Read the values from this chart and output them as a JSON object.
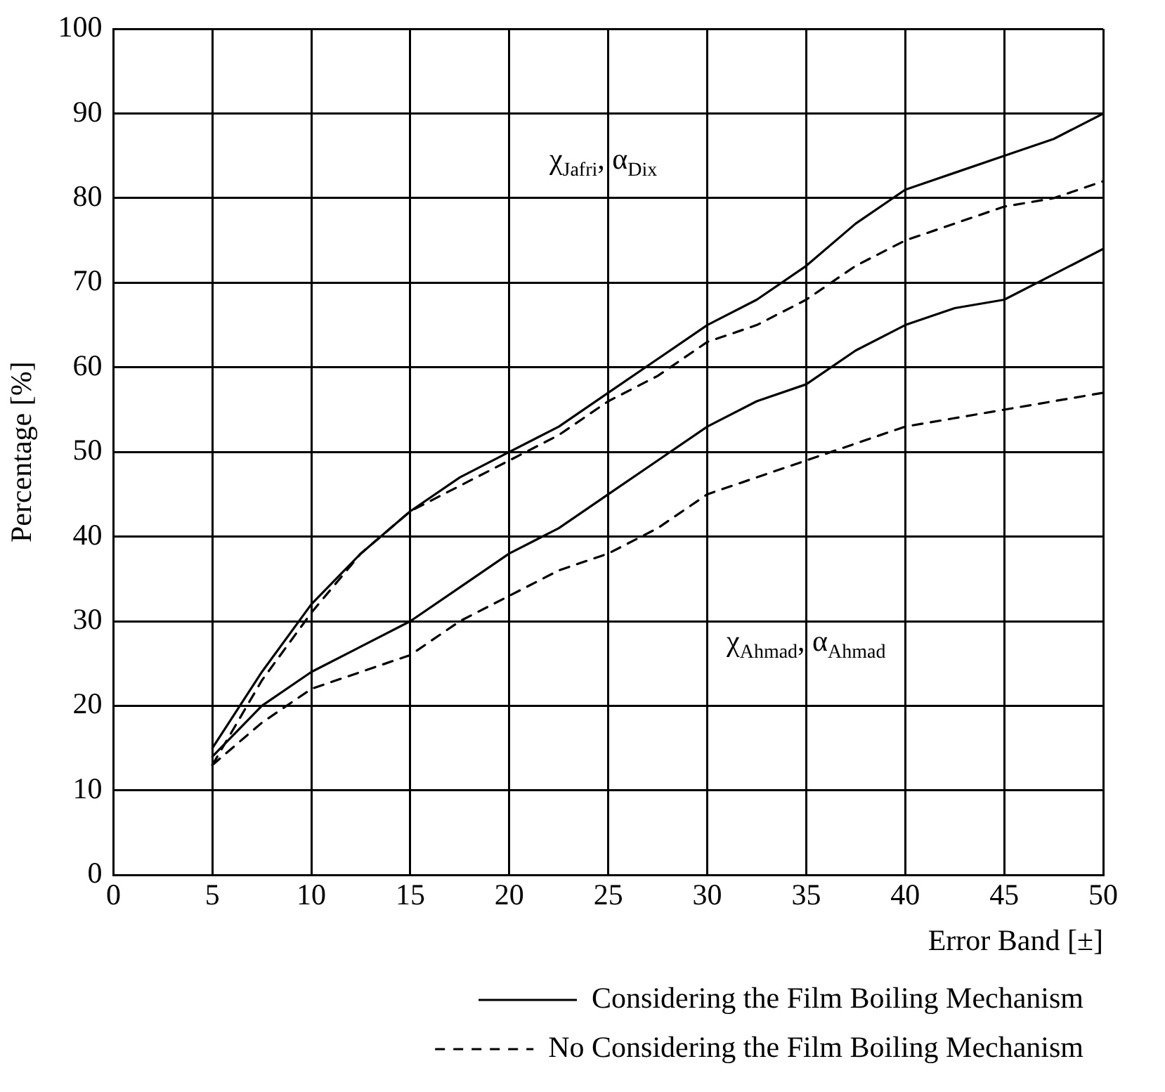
{
  "chart_data": {
    "type": "line",
    "xlabel": "Error Band [±]",
    "ylabel": "Percentage [%]",
    "xlim": [
      0,
      50
    ],
    "xticks": [
      0,
      5,
      10,
      15,
      20,
      25,
      30,
      35,
      40,
      45,
      50
    ],
    "ylim": [
      0,
      100
    ],
    "yticks": [
      0,
      10,
      20,
      30,
      40,
      50,
      60,
      70,
      80,
      90,
      100
    ],
    "grid": true,
    "legend": "bottom",
    "marker": "none",
    "series": [
      {
        "name": "Considering the Film Boiling Mechanism",
        "color": "#000000",
        "line_style": "solid",
        "x": [
          5,
          7.5,
          10,
          12.5,
          15,
          17.5,
          20,
          22.5,
          25,
          27.5,
          30,
          32.5,
          35,
          37.5,
          40,
          42.5,
          45,
          47.5,
          50
        ],
        "values": [
          15,
          24,
          32,
          38,
          43,
          47,
          50,
          53,
          57,
          61,
          65,
          68,
          72,
          77,
          81,
          83,
          85,
          87,
          90
        ]
      },
      {
        "name": "No Considering the Film Boiling Mechanism",
        "color": "#000000",
        "line_style": "dashed",
        "x": [
          5,
          7.5,
          10,
          12.5,
          15,
          17.5,
          20,
          22.5,
          25,
          27.5,
          30,
          32.5,
          35,
          37.5,
          40,
          42.5,
          45,
          47.5,
          50
        ],
        "values": [
          13,
          23,
          31,
          38,
          43,
          46,
          49,
          52,
          56,
          59,
          63,
          65,
          68,
          72,
          75,
          77,
          79,
          80,
          82
        ]
      },
      {
        "color": "#000000",
        "line_style": "solid",
        "x": [
          5,
          7.5,
          10,
          12.5,
          15,
          17.5,
          20,
          22.5,
          25,
          27.5,
          30,
          32.5,
          35,
          37.5,
          40,
          42.5,
          45,
          47.5,
          50
        ],
        "values": [
          14,
          20,
          24,
          27,
          30,
          34,
          38,
          41,
          45,
          49,
          53,
          56,
          58,
          62,
          65,
          67,
          68,
          71,
          74
        ]
      },
      {
        "color": "#000000",
        "line_style": "dashed",
        "x": [
          5,
          7.5,
          10,
          12.5,
          15,
          17.5,
          20,
          22.5,
          25,
          27.5,
          30,
          32.5,
          35,
          37.5,
          40,
          42.5,
          45,
          47.5,
          50
        ],
        "values": [
          13,
          18,
          22,
          24,
          26,
          30,
          33,
          36,
          38,
          41,
          45,
          47,
          49,
          51,
          53,
          54,
          55,
          56,
          57
        ]
      }
    ],
    "annotations": [
      "χ$_{Jafri}$, α$_{Dix}$",
      "χ$_{Ahmad}$, α$_{Ahmad}$"
    ]
  }
}
